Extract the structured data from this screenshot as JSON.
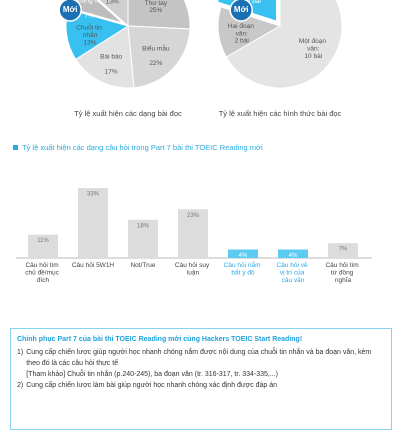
{
  "chart_data": [
    {
      "type": "pie",
      "caption": "Tỷ lệ xuất hiện các dạng bài đọc",
      "highlight_label": "Mới",
      "highlight": 4,
      "categories": [
        "Thư điện tử/ Thư tay",
        "Biểu mẫu",
        "Bài báo",
        "Chuỗi tin nhắn",
        "Quảng cáo",
        "Văn bản hướng dẫn"
      ],
      "values": [
        25,
        22,
        17,
        13,
        7,
        13
      ],
      "value_labels": [
        "25%",
        "22%",
        "17%",
        "13%",
        "7%",
        "13%"
      ],
      "colors": [
        "#c4c4c4",
        "#d6d6d6",
        "#e2e2e2",
        "#38c0f0",
        "#bdbdbd",
        "#cfcfcf"
      ]
    },
    {
      "type": "pie",
      "caption": "Tỷ lệ xuất hiện các hình thức bài đọc",
      "highlight_label": "Mới",
      "highlight": 2,
      "categories": [
        "Một đoạn văn:",
        "Hai đoạn văn:",
        "Ba đoạn văn:"
      ],
      "values": [
        10,
        2,
        3
      ],
      "value_labels": [
        "10 bài",
        "2 bài",
        "3 bài"
      ],
      "colors": [
        "#e4e4e4",
        "#c8c8c8",
        "#38c0f0"
      ]
    },
    {
      "type": "bar",
      "title": "Tỷ lệ xuất hiện các dạng câu hỏi trong Part 7 bài thi TOEIC Reading mới",
      "categories": [
        "Câu hỏi tìm chủ đề/mục đích",
        "Câu hỏi 5W1H",
        "Not/True",
        "Câu hỏi suy luận",
        "Câu hỏi nắm bắt ý đồ",
        "Câu hỏi về vị trí của câu văn",
        "Câu hỏi tìm từ đồng nghĩa"
      ],
      "values": [
        11,
        33,
        18,
        23,
        4,
        4,
        7
      ],
      "value_labels": [
        "11%",
        "33%",
        "18%",
        "23%",
        "4%",
        "4%",
        "7%"
      ],
      "colors": [
        "#dcdcdc",
        "#dcdcdc",
        "#dcdcdc",
        "#dcdcdc",
        "#5ccbf2",
        "#5ccbf2",
        "#dcdcdc"
      ]
    }
  ],
  "info_box": {
    "title": "Chinh phục Part 7 của bài thi TOEIC Reading mới cùng Hackers TOEIC Start Reading!",
    "items": [
      {
        "number": "1)",
        "text": "Cung cấp chiến lược giúp người học nhanh chóng nắm được nội dung của chuỗi tin nhắn và ba đoạn văn, kèm theo đó là các câu hỏi thực tế",
        "note": "[Tham khảo] Chuỗi tin nhắn (p.240-245), ba đoạn văn (tr. 316-317, tr. 334-335,...)"
      },
      {
        "number": "2)",
        "text": "Cung cấp chiến lược làm bài giúp người học nhanh chóng xác định được đáp án"
      }
    ]
  }
}
